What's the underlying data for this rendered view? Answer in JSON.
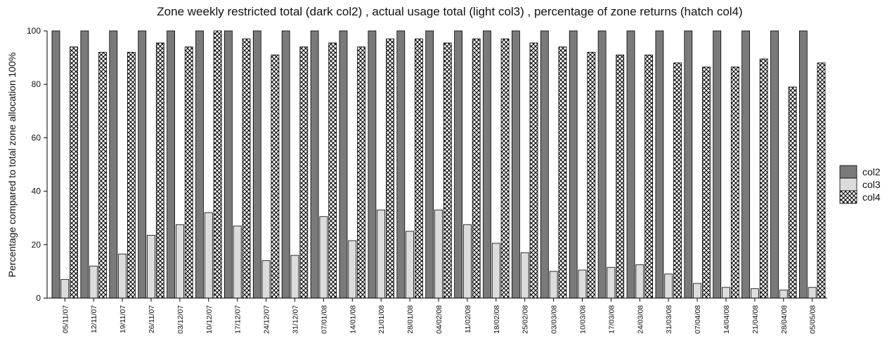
{
  "chart_data": {
    "type": "bar",
    "title": "Zone weekly restricted total (dark col2) , actual usage total (light col3) , percentage of zone returns (hatch col4)",
    "xlabel": "",
    "ylabel": "Percentage compared to total zone allocation 100%",
    "ylim": [
      0,
      100
    ],
    "yticks": [
      0,
      20,
      40,
      60,
      80,
      100
    ],
    "grid": false,
    "legend_position": "right",
    "categories": [
      "05/11/07",
      "12/11/07",
      "19/11/07",
      "26/11/07",
      "03/12/07",
      "10/12/07",
      "17/12/07",
      "24/12/07",
      "31/12/07",
      "07/01/08",
      "14/01/08",
      "21/01/08",
      "28/01/08",
      "04/02/08",
      "11/02/08",
      "18/02/08",
      "25/02/08",
      "03/03/08",
      "10/03/08",
      "17/03/08",
      "24/03/08",
      "31/03/08",
      "07/04/08",
      "14/04/08",
      "21/04/08",
      "28/04/08",
      "05/05/08"
    ],
    "series": [
      {
        "name": "col2",
        "fill": "dark",
        "color": "#7a7a7a",
        "values": [
          100,
          100,
          100,
          100,
          100,
          100,
          100,
          100,
          100,
          100,
          100,
          100,
          100,
          100,
          100,
          100,
          100,
          100,
          100,
          100,
          100,
          100,
          100,
          100,
          100,
          100,
          100
        ]
      },
      {
        "name": "col3",
        "fill": "light",
        "color": "#dcdcdc",
        "values": [
          7,
          12,
          16.5,
          23.5,
          27.5,
          32,
          27,
          14,
          16,
          30.5,
          21.5,
          33,
          25,
          33,
          27.5,
          20.5,
          17,
          10,
          10.5,
          11.5,
          12.5,
          9,
          5.5,
          4,
          3.5,
          3,
          4
        ]
      },
      {
        "name": "col4",
        "fill": "hatch",
        "color": "#000000",
        "values": [
          94,
          92,
          92,
          95.5,
          94,
          100,
          97,
          91,
          94,
          95.5,
          94,
          97,
          97,
          95.5,
          97,
          97,
          95.5,
          94,
          92,
          91,
          91,
          88,
          86.5,
          86.5,
          89.5,
          79,
          88
        ]
      }
    ]
  }
}
